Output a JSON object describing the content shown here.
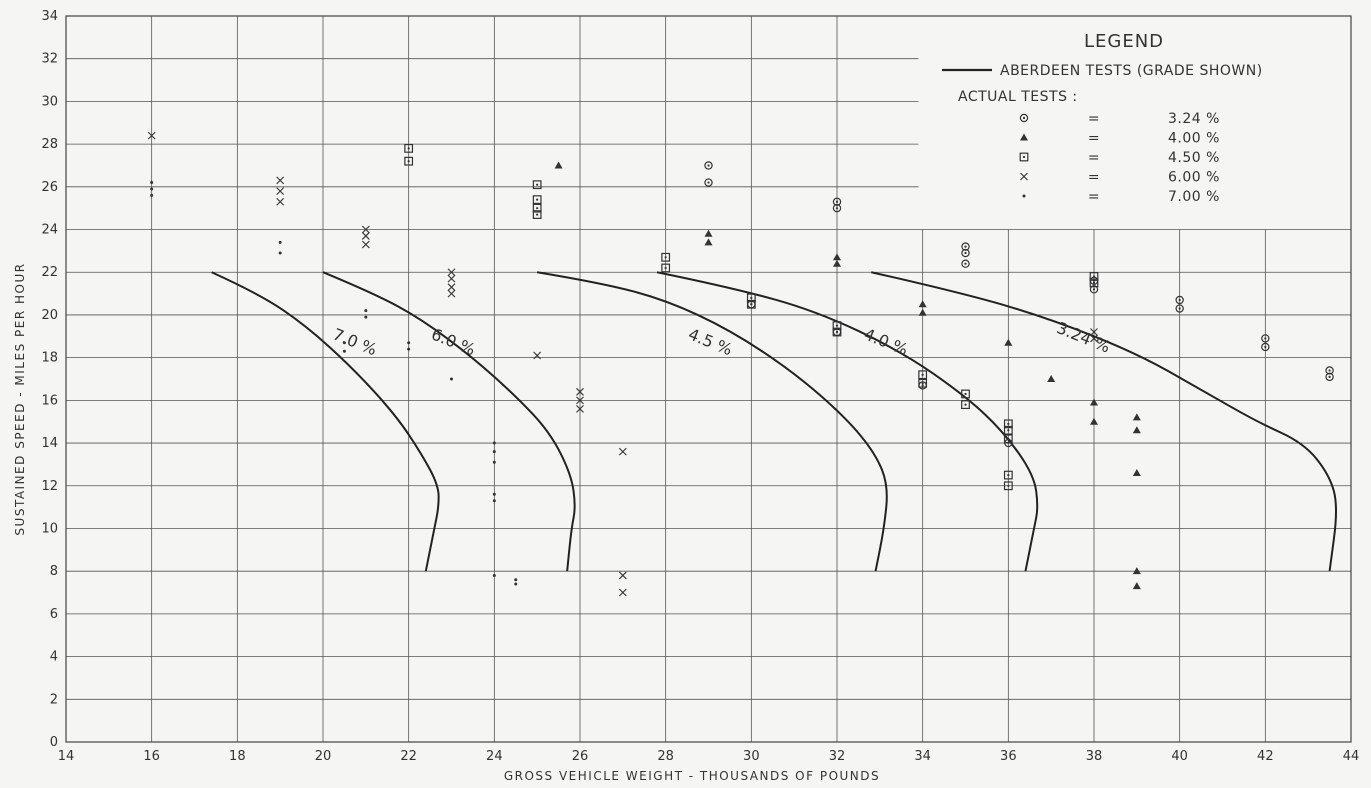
{
  "chart_data": {
    "type": "scatter",
    "xlabel": "GROSS VEHICLE WEIGHT - THOUSANDS OF POUNDS",
    "ylabel": "SUSTAINED SPEED - MILES PER HOUR",
    "xlim": [
      14,
      44
    ],
    "ylim": [
      0,
      34
    ],
    "xticks": [
      14,
      16,
      18,
      20,
      22,
      24,
      26,
      28,
      30,
      32,
      34,
      36,
      38,
      40,
      42,
      44
    ],
    "yticks": [
      0,
      2,
      4,
      6,
      8,
      10,
      12,
      14,
      16,
      18,
      20,
      22,
      24,
      26,
      28,
      30,
      32,
      34
    ],
    "grid": true,
    "legend": {
      "title": "LEGEND",
      "line_entry": "ABERDEEN TESTS (GRADE SHOWN)",
      "actual_header": "ACTUAL TESTS :",
      "placement": "top-right",
      "entries": [
        {
          "marker": "circle-dot",
          "eq": "=",
          "label": "3.24 %"
        },
        {
          "marker": "triangle",
          "eq": "=",
          "label": "4.00 %"
        },
        {
          "marker": "square-dot",
          "eq": "=",
          "label": "4.50 %"
        },
        {
          "marker": "x",
          "eq": "=",
          "label": "6.00 %"
        },
        {
          "marker": "dot",
          "eq": "=",
          "label": "7.00 %"
        }
      ]
    },
    "curves": [
      {
        "label": "7.0 %",
        "label_at": [
          20.2,
          18.9
        ],
        "points": [
          [
            17.4,
            22
          ],
          [
            18.5,
            21
          ],
          [
            19.6,
            19.5
          ],
          [
            20.7,
            17.5
          ],
          [
            21.7,
            15.3
          ],
          [
            22.3,
            13.5
          ],
          [
            22.7,
            12
          ],
          [
            22.7,
            11
          ],
          [
            22.6,
            10
          ],
          [
            22.4,
            8
          ]
        ]
      },
      {
        "label": "6.0 %",
        "label_at": [
          22.5,
          18.9
        ],
        "points": [
          [
            20.0,
            22
          ],
          [
            21.2,
            21
          ],
          [
            22.3,
            19.8
          ],
          [
            23.5,
            18
          ],
          [
            24.5,
            16.2
          ],
          [
            25.3,
            14.5
          ],
          [
            25.8,
            12.5
          ],
          [
            25.9,
            11
          ],
          [
            25.8,
            10
          ],
          [
            25.7,
            8
          ]
        ]
      },
      {
        "label": "4.5 %",
        "label_at": [
          28.5,
          18.9
        ],
        "points": [
          [
            25.0,
            22
          ],
          [
            26.5,
            21.5
          ],
          [
            28.0,
            20.7
          ],
          [
            29.5,
            19.3
          ],
          [
            31.0,
            17.3
          ],
          [
            32.2,
            15.2
          ],
          [
            32.9,
            13.5
          ],
          [
            33.2,
            12
          ],
          [
            33.1,
            10
          ],
          [
            32.9,
            8
          ]
        ]
      },
      {
        "label": "4.0 %",
        "label_at": [
          32.6,
          18.9
        ],
        "points": [
          [
            27.8,
            22
          ],
          [
            29.5,
            21.3
          ],
          [
            31.5,
            20.2
          ],
          [
            33.5,
            18.3
          ],
          [
            35.0,
            16.2
          ],
          [
            35.9,
            14.5
          ],
          [
            36.6,
            12.5
          ],
          [
            36.7,
            11
          ],
          [
            36.6,
            10
          ],
          [
            36.4,
            8
          ]
        ]
      },
      {
        "label": "3.24 %",
        "label_at": [
          37.1,
          19.2
        ],
        "points": [
          [
            32.8,
            22
          ],
          [
            35.0,
            21
          ],
          [
            37.0,
            19.8
          ],
          [
            39.0,
            18.2
          ],
          [
            40.5,
            16.5
          ],
          [
            41.8,
            15
          ],
          [
            42.9,
            14
          ],
          [
            43.5,
            12.5
          ],
          [
            43.7,
            11
          ],
          [
            43.5,
            8
          ]
        ]
      }
    ],
    "series": [
      {
        "marker": "circle-dot",
        "values": [
          [
            29,
            27
          ],
          [
            29,
            26.2
          ],
          [
            32,
            25.3
          ],
          [
            32,
            25
          ],
          [
            35,
            23.2
          ],
          [
            35,
            22.9
          ],
          [
            35,
            22.4
          ],
          [
            38,
            21.2
          ],
          [
            38,
            21.6
          ],
          [
            40,
            20.7
          ],
          [
            40,
            20.3
          ],
          [
            42,
            18.9
          ],
          [
            42,
            18.5
          ],
          [
            43.5,
            17.4
          ],
          [
            43.5,
            17.1
          ],
          [
            30,
            20.5
          ],
          [
            32,
            19.2
          ],
          [
            34,
            16.7
          ],
          [
            36,
            14.0
          ]
        ]
      },
      {
        "marker": "triangle",
        "values": [
          [
            25.5,
            27
          ],
          [
            29,
            23.8
          ],
          [
            29,
            23.4
          ],
          [
            32,
            22.7
          ],
          [
            32,
            22.4
          ],
          [
            34,
            20.5
          ],
          [
            34,
            20.1
          ],
          [
            36,
            18.7
          ],
          [
            37,
            17
          ],
          [
            38,
            15.9
          ],
          [
            38,
            15
          ],
          [
            39,
            15.2
          ],
          [
            39,
            14.6
          ],
          [
            39,
            12.6
          ],
          [
            39,
            8
          ],
          [
            39,
            7.3
          ]
        ]
      },
      {
        "marker": "square-dot",
        "values": [
          [
            22,
            27.8
          ],
          [
            22,
            27.2
          ],
          [
            25,
            26.1
          ],
          [
            25,
            25.4
          ],
          [
            25,
            25
          ],
          [
            25,
            24.7
          ],
          [
            28,
            22.7
          ],
          [
            28,
            22.2
          ],
          [
            30,
            20.8
          ],
          [
            30,
            20.5
          ],
          [
            32,
            19.5
          ],
          [
            32,
            19.2
          ],
          [
            34,
            17.2
          ],
          [
            34,
            16.8
          ],
          [
            35,
            16.3
          ],
          [
            35,
            15.8
          ],
          [
            36,
            14.9
          ],
          [
            36,
            14.6
          ],
          [
            36,
            14.2
          ],
          [
            36,
            12.5
          ],
          [
            36,
            12
          ],
          [
            38,
            21.8
          ],
          [
            38,
            21.5
          ]
        ]
      },
      {
        "marker": "x",
        "values": [
          [
            16,
            28.4
          ],
          [
            19,
            26.3
          ],
          [
            19,
            25.8
          ],
          [
            19,
            25.3
          ],
          [
            21,
            24
          ],
          [
            21,
            23.7
          ],
          [
            21,
            23.3
          ],
          [
            23,
            22
          ],
          [
            23,
            21.7
          ],
          [
            23,
            21.3
          ],
          [
            23,
            21
          ],
          [
            25,
            18.1
          ],
          [
            26,
            16.4
          ],
          [
            26,
            16
          ],
          [
            26,
            15.6
          ],
          [
            27,
            13.6
          ],
          [
            27,
            7.8
          ],
          [
            27,
            7
          ],
          [
            38,
            19.2
          ],
          [
            38,
            18.9
          ]
        ]
      },
      {
        "marker": "dot",
        "values": [
          [
            16,
            26.2
          ],
          [
            16,
            25.9
          ],
          [
            16,
            25.6
          ],
          [
            19,
            23.4
          ],
          [
            19,
            22.9
          ],
          [
            21,
            20.2
          ],
          [
            21,
            19.9
          ],
          [
            22,
            18.7
          ],
          [
            22,
            18.4
          ],
          [
            23,
            17
          ],
          [
            24,
            14
          ],
          [
            24,
            13.6
          ],
          [
            24,
            13.1
          ],
          [
            24,
            11.6
          ],
          [
            24,
            11.3
          ],
          [
            24,
            7.8
          ],
          [
            24.5,
            7.6
          ],
          [
            24.5,
            7.4
          ],
          [
            20.5,
            18.7
          ],
          [
            20.5,
            18.3
          ]
        ]
      }
    ]
  }
}
